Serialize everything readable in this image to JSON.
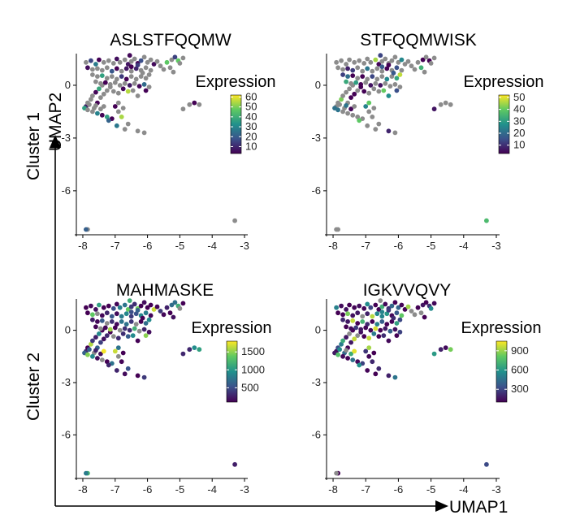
{
  "figure": {
    "cluster_labels": [
      "Cluster 1",
      "Cluster 2"
    ],
    "umap2_label": "UMAP2",
    "umap1_label": "UMAP1"
  },
  "chart_data": [
    {
      "type": "scatter",
      "title": "ASLSTFQQMW",
      "xlabel": "UMAP1",
      "ylabel": "UMAP2",
      "xlim": [
        -8.2,
        -2.9
      ],
      "ylim": [
        -8.5,
        1.8
      ],
      "x_ticks": [
        "-8",
        "-7",
        "-6",
        "-5",
        "-4",
        "-3"
      ],
      "y_ticks": [
        "0",
        "-3",
        "-6"
      ],
      "legend_title": "Expression",
      "legend_ticks": [
        "60",
        "50",
        "40",
        "30",
        "20",
        "10"
      ],
      "legend_range": [
        3,
        62
      ],
      "expressing_fraction": 0.35
    },
    {
      "type": "scatter",
      "title": "STFQQMWISK",
      "xlabel": "UMAP1",
      "ylabel": "UMAP2",
      "xlim": [
        -8.2,
        -2.9
      ],
      "ylim": [
        -8.5,
        1.8
      ],
      "x_ticks": [
        "-8",
        "-7",
        "-6",
        "-5",
        "-4",
        "-3"
      ],
      "y_ticks": [
        "0",
        "-3",
        "-6"
      ],
      "legend_title": "Expression",
      "legend_ticks": [
        "50",
        "40",
        "30",
        "20",
        "10"
      ],
      "legend_range": [
        3,
        52
      ],
      "expressing_fraction": 0.35
    },
    {
      "type": "scatter",
      "title": "MAHMASKE",
      "xlabel": "UMAP1",
      "ylabel": "UMAP2",
      "xlim": [
        -8.2,
        -2.9
      ],
      "ylim": [
        -8.5,
        1.8
      ],
      "x_ticks": [
        "-8",
        "-7",
        "-6",
        "-5",
        "-4",
        "-3"
      ],
      "y_ticks": [
        "0",
        "-3",
        "-6"
      ],
      "legend_title": "Expression",
      "legend_ticks": [
        "1500",
        "1000",
        "500"
      ],
      "legend_range": [
        100,
        1800
      ],
      "expressing_fraction": 0.9
    },
    {
      "type": "scatter",
      "title": "IGKVVQVY",
      "xlabel": "UMAP1",
      "ylabel": "UMAP2",
      "xlim": [
        -8.2,
        -2.9
      ],
      "ylim": [
        -8.5,
        1.8
      ],
      "x_ticks": [
        "-8",
        "-7",
        "-6",
        "-5",
        "-4",
        "-3"
      ],
      "y_ticks": [
        "0",
        "-3",
        "-6"
      ],
      "legend_title": "Expression",
      "legend_ticks": [
        "900",
        "600",
        "300"
      ],
      "legend_range": [
        100,
        1050
      ],
      "expressing_fraction": 0.9
    }
  ],
  "cells": [
    [
      -7.9,
      -1.2
    ],
    [
      -7.85,
      -1.0
    ],
    [
      -7.75,
      -0.8
    ],
    [
      -7.7,
      -0.6
    ],
    [
      -7.6,
      -0.4
    ],
    [
      -7.5,
      -0.2
    ],
    [
      -7.4,
      0.0
    ],
    [
      -7.8,
      -1.1
    ],
    [
      -7.65,
      -1.3
    ],
    [
      -7.55,
      -1.0
    ],
    [
      -7.45,
      -0.7
    ],
    [
      -7.35,
      -0.5
    ],
    [
      -7.25,
      -0.3
    ],
    [
      -7.15,
      -0.1
    ],
    [
      -7.95,
      -1.3
    ],
    [
      -7.85,
      -1.4
    ],
    [
      -7.7,
      -1.5
    ],
    [
      -7.55,
      -1.6
    ],
    [
      -7.4,
      -1.7
    ],
    [
      -7.25,
      -1.8
    ],
    [
      -7.1,
      -1.9
    ],
    [
      -7.6,
      -1.15
    ],
    [
      -7.45,
      -1.35
    ],
    [
      -7.35,
      -1.2
    ],
    [
      -7.0,
      -1.2
    ],
    [
      -6.9,
      -1.5
    ],
    [
      -6.8,
      -1.8
    ],
    [
      -6.6,
      -2.2
    ],
    [
      -7.2,
      -2.0
    ],
    [
      -6.95,
      -2.3
    ],
    [
      -6.7,
      -2.5
    ],
    [
      -6.3,
      -2.6
    ],
    [
      -6.1,
      -2.7
    ],
    [
      -6.9,
      -1.0
    ],
    [
      -6.75,
      -1.3
    ],
    [
      -7.9,
      1.3
    ],
    [
      -7.75,
      1.4
    ],
    [
      -7.6,
      1.2
    ],
    [
      -7.5,
      1.45
    ],
    [
      -7.35,
      1.3
    ],
    [
      -7.2,
      1.4
    ],
    [
      -7.05,
      1.25
    ],
    [
      -6.95,
      1.5
    ],
    [
      -6.85,
      1.3
    ],
    [
      -6.7,
      1.45
    ],
    [
      -6.6,
      1.2
    ],
    [
      -6.5,
      1.35
    ],
    [
      -6.4,
      1.5
    ],
    [
      -6.3,
      1.25
    ],
    [
      -6.2,
      1.4
    ],
    [
      -6.1,
      1.6
    ],
    [
      -6.0,
      1.3
    ],
    [
      -5.9,
      1.45
    ],
    [
      -5.8,
      1.2
    ],
    [
      -5.7,
      1.35
    ],
    [
      -6.55,
      1.7
    ],
    [
      -7.85,
      1.0
    ],
    [
      -7.7,
      0.9
    ],
    [
      -7.55,
      0.95
    ],
    [
      -7.4,
      0.85
    ],
    [
      -7.25,
      1.0
    ],
    [
      -7.1,
      0.8
    ],
    [
      -6.95,
      0.95
    ],
    [
      -6.8,
      0.8
    ],
    [
      -6.65,
      0.95
    ],
    [
      -6.5,
      0.8
    ],
    [
      -6.35,
      0.95
    ],
    [
      -6.2,
      0.85
    ],
    [
      -6.05,
      1.0
    ],
    [
      -5.9,
      0.85
    ],
    [
      -7.7,
      0.6
    ],
    [
      -7.55,
      0.5
    ],
    [
      -7.4,
      0.55
    ],
    [
      -7.25,
      0.4
    ],
    [
      -7.1,
      0.5
    ],
    [
      -6.95,
      0.35
    ],
    [
      -6.8,
      0.5
    ],
    [
      -6.65,
      0.35
    ],
    [
      -6.5,
      0.5
    ],
    [
      -6.35,
      0.35
    ],
    [
      -6.2,
      0.5
    ],
    [
      -6.05,
      0.4
    ],
    [
      -5.95,
      0.6
    ],
    [
      -6.15,
      0.7
    ],
    [
      -7.6,
      0.2
    ],
    [
      -7.45,
      0.1
    ],
    [
      -7.3,
      0.15
    ],
    [
      -7.15,
      0.05
    ],
    [
      -7.0,
      0.15
    ],
    [
      -6.85,
      0.0
    ],
    [
      -6.7,
      0.1
    ],
    [
      -6.55,
      0.0
    ],
    [
      -6.4,
      0.1
    ],
    [
      -6.25,
      -0.05
    ],
    [
      -6.1,
      0.05
    ],
    [
      -6.45,
      -0.3
    ],
    [
      -6.6,
      -0.35
    ],
    [
      -6.3,
      -0.6
    ],
    [
      -6.05,
      -0.3
    ],
    [
      -5.95,
      -0.1
    ],
    [
      -6.75,
      -0.2
    ],
    [
      -6.9,
      -0.45
    ],
    [
      -7.05,
      -0.35
    ],
    [
      -6.5,
      1.05
    ],
    [
      -6.3,
      1.15
    ],
    [
      -5.6,
      1.1
    ],
    [
      -5.4,
      1.3
    ],
    [
      -5.25,
      1.45
    ],
    [
      -5.15,
      1.6
    ],
    [
      -5.05,
      1.4
    ],
    [
      -5.3,
      1.0
    ],
    [
      -5.2,
      0.75
    ],
    [
      -5.0,
      1.25
    ],
    [
      -5.5,
      0.9
    ],
    [
      -4.9,
      1.55
    ],
    [
      -4.7,
      -1.1
    ],
    [
      -4.55,
      -1.0
    ],
    [
      -4.4,
      -1.1
    ],
    [
      -4.9,
      -1.35
    ],
    [
      -3.3,
      -7.7
    ],
    [
      -7.85,
      -8.2
    ],
    [
      -7.9,
      -8.2
    ]
  ]
}
